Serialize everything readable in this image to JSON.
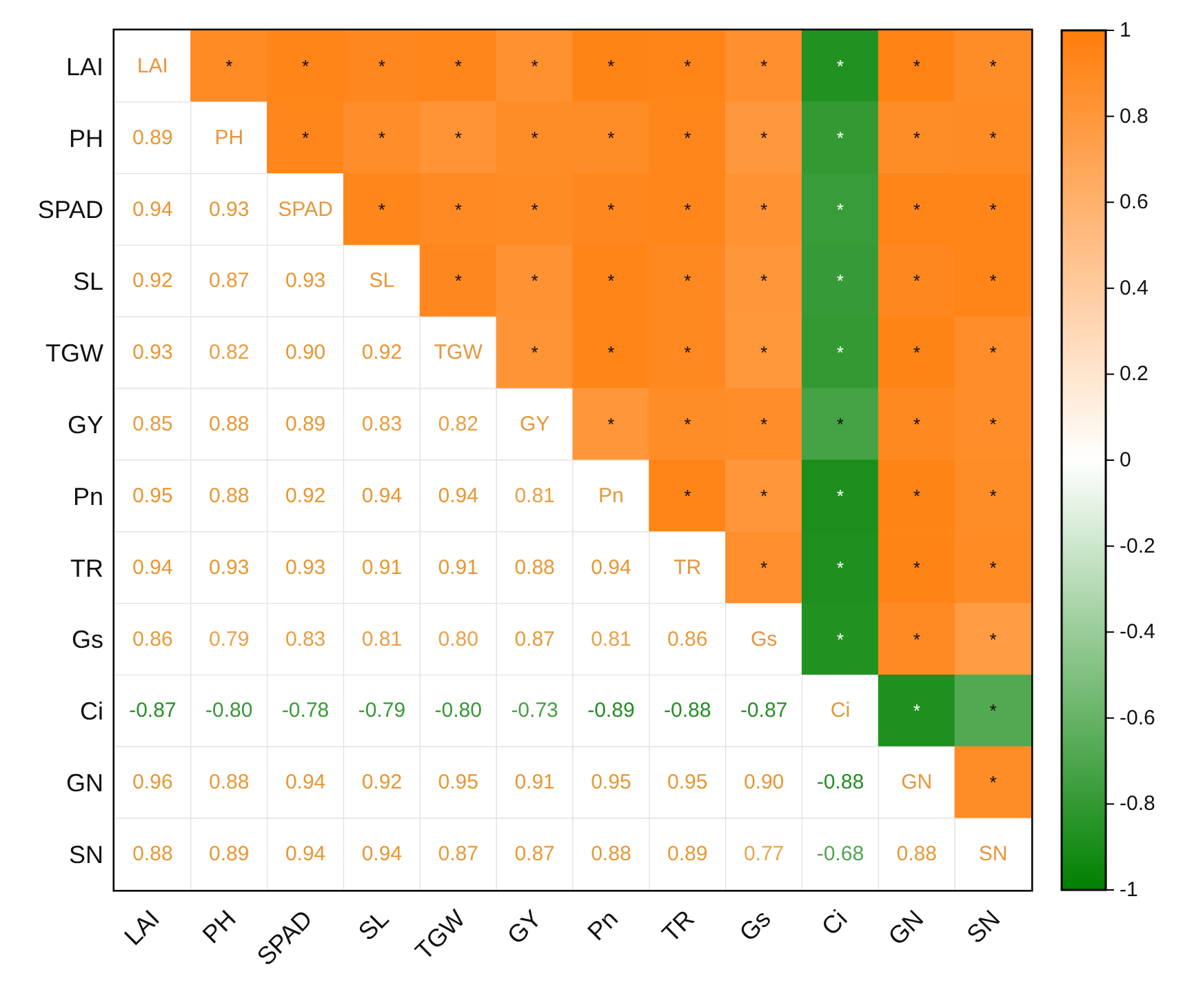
{
  "chart_data": {
    "type": "heatmap",
    "categories": [
      "LAI",
      "PH",
      "SPAD",
      "SL",
      "TGW",
      "GY",
      "Pn",
      "TR",
      "Gs",
      "Ci",
      "GN",
      "SN"
    ],
    "y_categories": [
      "LAI",
      "PH",
      "SPAD",
      "SL",
      "TGW",
      "GY",
      "Pn",
      "TR",
      "Gs",
      "Ci",
      "GN",
      "SN"
    ],
    "cells": [
      [
        null,
        0.89,
        0.94,
        0.92,
        0.93,
        0.85,
        0.95,
        0.94,
        0.86,
        -0.87,
        0.96,
        0.88
      ],
      [
        null,
        null,
        0.93,
        0.87,
        0.82,
        0.88,
        0.88,
        0.93,
        0.79,
        -0.8,
        0.88,
        0.89
      ],
      [
        null,
        null,
        null,
        0.93,
        0.9,
        0.89,
        0.92,
        0.93,
        0.83,
        -0.78,
        0.94,
        0.94
      ],
      [
        null,
        null,
        null,
        null,
        0.92,
        0.83,
        0.94,
        0.91,
        0.81,
        -0.79,
        0.92,
        0.94
      ],
      [
        null,
        null,
        null,
        null,
        null,
        0.82,
        0.94,
        0.91,
        0.8,
        -0.8,
        0.95,
        0.87
      ],
      [
        null,
        null,
        null,
        null,
        null,
        null,
        0.81,
        0.88,
        0.87,
        -0.73,
        0.91,
        0.87
      ],
      [
        null,
        null,
        null,
        null,
        null,
        null,
        null,
        0.94,
        0.81,
        -0.89,
        0.95,
        0.88
      ],
      [
        null,
        null,
        null,
        null,
        null,
        null,
        null,
        null,
        0.86,
        -0.88,
        0.95,
        0.89
      ],
      [
        null,
        null,
        null,
        null,
        null,
        null,
        null,
        null,
        null,
        -0.87,
        0.9,
        0.77
      ],
      [
        null,
        null,
        null,
        null,
        null,
        null,
        null,
        null,
        null,
        null,
        -0.88,
        -0.68
      ],
      [
        null,
        null,
        null,
        null,
        null,
        null,
        null,
        null,
        null,
        null,
        null,
        0.88
      ],
      [
        null,
        null,
        null,
        null,
        null,
        null,
        null,
        null,
        null,
        null,
        null,
        null
      ]
    ],
    "cell_labels": [
      [
        "LAI",
        "*",
        "*",
        "*",
        "*",
        "*",
        "*",
        "*",
        "*",
        "*",
        "*",
        "*"
      ],
      [
        "0.89",
        "PH",
        "*",
        "*",
        "*",
        "*",
        "*",
        "*",
        "*",
        "*",
        "*",
        "*"
      ],
      [
        "0.94",
        "0.93",
        "SPAD",
        "*",
        "*",
        "*",
        "*",
        "*",
        "*",
        "*",
        "*",
        "*"
      ],
      [
        "0.92",
        "0.87",
        "0.93",
        "SL",
        "*",
        "*",
        "*",
        "*",
        "*",
        "*",
        "*",
        "*"
      ],
      [
        "0.93",
        "0.82",
        "0.90",
        "0.92",
        "TGW",
        "*",
        "*",
        "*",
        "*",
        "*",
        "*",
        "*"
      ],
      [
        "0.85",
        "0.88",
        "0.89",
        "0.83",
        "0.82",
        "GY",
        "*",
        "*",
        "*",
        "*",
        "*",
        "*"
      ],
      [
        "0.95",
        "0.88",
        "0.92",
        "0.94",
        "0.94",
        "0.81",
        "Pn",
        "*",
        "*",
        "*",
        "*",
        "*"
      ],
      [
        "0.94",
        "0.93",
        "0.93",
        "0.91",
        "0.91",
        "0.88",
        "0.94",
        "TR",
        "*",
        "*",
        "*",
        "*"
      ],
      [
        "0.86",
        "0.79",
        "0.83",
        "0.81",
        "0.80",
        "0.87",
        "0.81",
        "0.86",
        "Gs",
        "*",
        "*",
        "*"
      ],
      [
        "-0.87",
        "-0.80",
        "-0.78",
        "-0.79",
        "-0.80",
        "-0.73",
        "-0.89",
        "-0.88",
        "-0.87",
        "Ci",
        "*",
        "*"
      ],
      [
        "0.96",
        "0.88",
        "0.94",
        "0.92",
        "0.95",
        "0.91",
        "0.95",
        "0.95",
        "0.90",
        "-0.88",
        "GN",
        "*"
      ],
      [
        "0.88",
        "0.89",
        "0.94",
        "0.94",
        "0.87",
        "0.87",
        "0.88",
        "0.89",
        "0.77",
        "-0.68",
        "0.88",
        "SN"
      ]
    ],
    "clim": [
      -1,
      1
    ],
    "cticks": [
      -1,
      -0.8,
      -0.6,
      -0.4,
      -0.2,
      0,
      0.2,
      0.4,
      0.6,
      0.8,
      1
    ]
  }
}
